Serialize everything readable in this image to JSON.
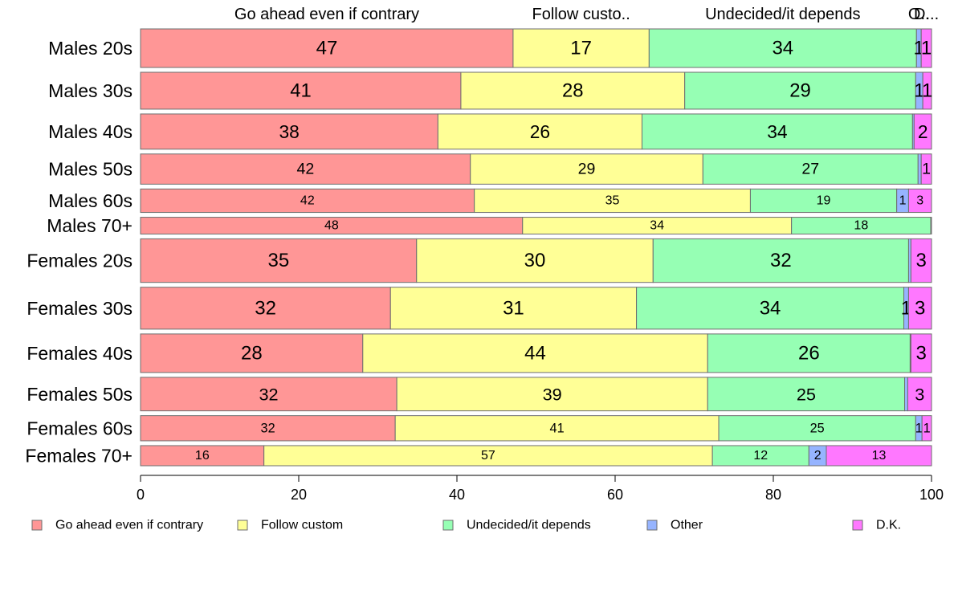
{
  "chart_data": {
    "type": "bar",
    "orientation": "horizontal",
    "stacked": true,
    "percent": true,
    "categories": [
      "Males 20s",
      "Males 30s",
      "Males 40s",
      "Males 50s",
      "Males 60s",
      "Males 70+",
      "Females 20s",
      "Females 30s",
      "Females 40s",
      "Females 50s",
      "Females 60s",
      "Females 70+"
    ],
    "weights": [
      46,
      44,
      42,
      36,
      28,
      20,
      52,
      50,
      46,
      40,
      30,
      24
    ],
    "series": [
      {
        "name": "Go ahead even if contrary",
        "color": "#ff9696",
        "values": [
          47.1,
          40.5,
          37.6,
          41.7,
          42.2,
          48.3,
          34.9,
          31.6,
          28.1,
          32.4,
          32.2,
          15.6
        ],
        "labels": [
          "47",
          "41",
          "38",
          "42",
          "42",
          "48",
          "35",
          "32",
          "28",
          "32",
          "32",
          "16"
        ]
      },
      {
        "name": "Follow custom",
        "color": "#ffff96",
        "values": [
          17.2,
          28.3,
          25.8,
          29.4,
          34.9,
          34.0,
          29.9,
          31.1,
          43.6,
          39.3,
          40.9,
          56.7
        ],
        "labels": [
          "17",
          "28",
          "26",
          "29",
          "35",
          "34",
          "30",
          "31",
          "44",
          "39",
          "41",
          "57"
        ]
      },
      {
        "name": "Undecided/it depends",
        "color": "#96ffb4",
        "values": [
          33.8,
          29.2,
          34.2,
          27.2,
          18.5,
          17.6,
          32.3,
          33.8,
          25.6,
          24.9,
          24.9,
          12.2
        ],
        "labels": [
          "34",
          "29",
          "34",
          "27",
          "19",
          "18",
          "32",
          "34",
          "26",
          "25",
          "25",
          "12"
        ]
      },
      {
        "name": "Other",
        "color": "#96b4ff",
        "values": [
          0.6,
          0.9,
          0.2,
          0.4,
          1.5,
          0.0,
          0.3,
          0.6,
          0.1,
          0.4,
          0.8,
          2.2
        ],
        "labels": [
          "1",
          "1",
          "",
          "",
          "1",
          "",
          "",
          "1",
          "",
          "",
          "1",
          "2"
        ]
      },
      {
        "name": "D.K.",
        "color": "#ff78ff",
        "values": [
          1.3,
          1.1,
          2.2,
          1.3,
          2.9,
          0.1,
          2.6,
          2.9,
          2.6,
          3.0,
          1.2,
          13.3
        ],
        "labels": [
          "1",
          "1",
          "2",
          "1",
          "3",
          "",
          "3",
          "3",
          "3",
          "3",
          "1",
          "13"
        ]
      }
    ],
    "top_labels": [
      "Go ahead even if contrary",
      "Follow custo..",
      "Undecided/it depends",
      "O..",
      "D..."
    ],
    "xlim": [
      0,
      100
    ],
    "xticks": [
      "0",
      "20",
      "40",
      "60",
      "80",
      "100"
    ],
    "title": "",
    "xlabel": "",
    "ylabel": "",
    "legend_position": "bottom",
    "grid": false
  }
}
